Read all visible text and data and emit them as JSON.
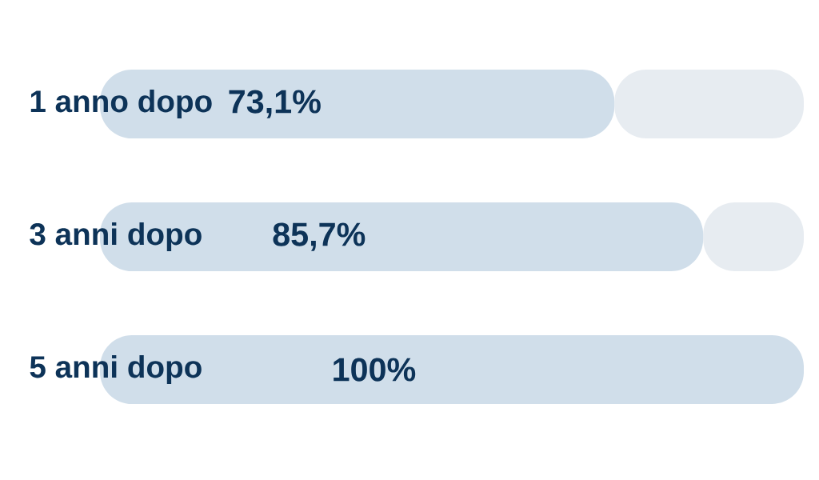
{
  "chart_data": {
    "type": "bar",
    "orientation": "horizontal",
    "stacked": true,
    "categories": [
      "1 anno dopo",
      "3 anni dopo",
      "5 anni dopo"
    ],
    "series": [
      {
        "color": "#d0deea",
        "values": [
          73.1,
          85.7,
          100
        ],
        "value_labels": [
          "73,1%",
          "85,7%",
          "100%"
        ]
      },
      {
        "color": "#e7ecf1",
        "values": [
          26.9,
          14.3,
          0
        ]
      }
    ],
    "xlim": [
      0,
      100
    ],
    "tick_labels": "y"
  }
}
